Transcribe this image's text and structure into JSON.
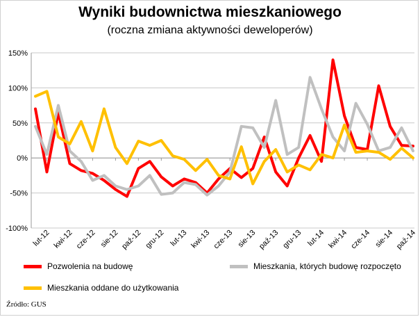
{
  "chart_data": {
    "type": "line",
    "title": "Wyniki budownictwa mieszkaniowego",
    "subtitle": "(roczna zmiana aktywności deweloperów)",
    "source": "Źródło: GUS",
    "ylim": [
      -100,
      150
    ],
    "y_ticks": [
      "150%",
      "100%",
      "50%",
      "0%",
      "-50%",
      "-100%"
    ],
    "y_tick_values": [
      150,
      100,
      50,
      0,
      -50,
      -100
    ],
    "x_ticks": [
      "lut-12",
      "kwi-12",
      "cze-12",
      "sie-12",
      "paź-12",
      "gru-12",
      "lut-13",
      "kwi-13",
      "cze-13",
      "sie-13",
      "paź-13",
      "gru-13",
      "lut-14",
      "kwi-14",
      "cze-14",
      "sie-14",
      "paź-14"
    ],
    "x": [
      "sty-12",
      "lut-12",
      "mar-12",
      "kwi-12",
      "maj-12",
      "cze-12",
      "lip-12",
      "sie-12",
      "wrz-12",
      "paź-12",
      "lis-12",
      "gru-12",
      "sty-13",
      "lut-13",
      "mar-13",
      "kwi-13",
      "maj-13",
      "cze-13",
      "lip-13",
      "sie-13",
      "wrz-13",
      "paź-13",
      "lis-13",
      "gru-13",
      "sty-14",
      "lut-14",
      "mar-14",
      "kwi-14",
      "maj-14",
      "cze-14",
      "lip-14",
      "sie-14",
      "wrz-14",
      "paź-14"
    ],
    "grid": true,
    "series": [
      {
        "name": "Pozwolenia na budowę",
        "color": "#ff0000",
        "values": [
          70,
          -20,
          65,
          -8,
          -18,
          -22,
          -32,
          -45,
          -55,
          -15,
          -5,
          -27,
          -40,
          -30,
          -35,
          -50,
          -30,
          -15,
          -28,
          -15,
          30,
          -20,
          -40,
          0,
          32,
          -5,
          140,
          60,
          15,
          12,
          103,
          45,
          18,
          17
        ]
      },
      {
        "name": "Mieszkania, których budowę rozpoczęto",
        "color": "#c0c0c0",
        "values": [
          45,
          5,
          75,
          10,
          -5,
          -32,
          -25,
          -40,
          -45,
          -40,
          -25,
          -52,
          -50,
          -35,
          -38,
          -53,
          -40,
          -20,
          45,
          43,
          15,
          82,
          5,
          15,
          115,
          70,
          30,
          10,
          78,
          48,
          10,
          15,
          43,
          10
        ]
      },
      {
        "name": "Mieszkania oddane do użytkowania",
        "color": "#ffc000",
        "values": [
          88,
          95,
          30,
          20,
          52,
          10,
          70,
          15,
          -8,
          24,
          18,
          25,
          3,
          -2,
          -18,
          -2,
          -25,
          -30,
          16,
          -37,
          -5,
          12,
          -20,
          -10,
          -17,
          5,
          0,
          47,
          8,
          10,
          8,
          -2,
          14,
          0
        ]
      }
    ],
    "legend": "bottom"
  }
}
